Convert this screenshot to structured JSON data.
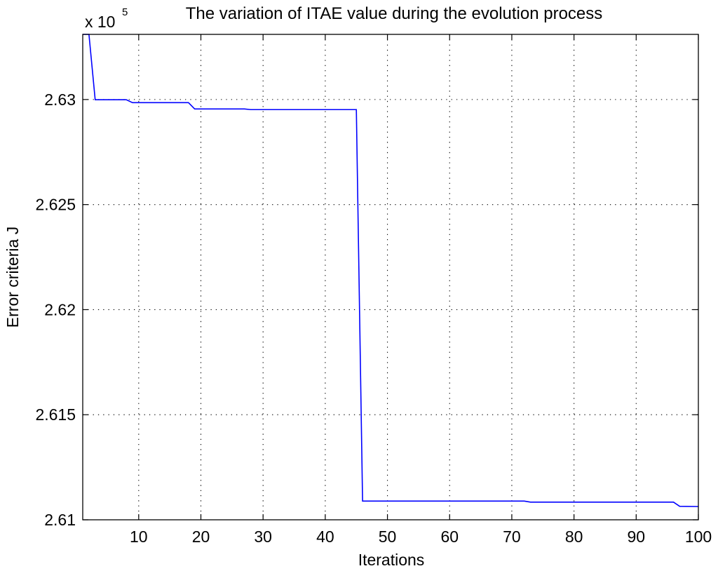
{
  "chart_data": {
    "type": "line",
    "title": "The variation of ITAE value during the evolution process",
    "xlabel": "Iterations",
    "ylabel": "Error criteria J",
    "y_multiplier_base": "x 10",
    "y_multiplier_exp": "5",
    "xlim": [
      1,
      100
    ],
    "ylim": [
      2.61,
      2.6331
    ],
    "xticks": [
      10,
      20,
      30,
      40,
      50,
      60,
      70,
      80,
      90,
      100
    ],
    "yticks": [
      2.61,
      2.615,
      2.62,
      2.625,
      2.63
    ],
    "ytick_labels": [
      "2.61",
      "2.615",
      "2.62",
      "2.625",
      "2.63"
    ],
    "grid": true,
    "line_color": "#0000ff",
    "series": [
      {
        "x": [
          1,
          2,
          3,
          8,
          9,
          18,
          19,
          27,
          28,
          45,
          46,
          72,
          73,
          96,
          97,
          100
        ],
        "y": [
          2.6331,
          2.6331,
          2.62999,
          2.62999,
          2.62985,
          2.62985,
          2.62955,
          2.62955,
          2.62952,
          2.62952,
          2.61089,
          2.61089,
          2.61084,
          2.61084,
          2.61064,
          2.61063
        ]
      }
    ]
  }
}
